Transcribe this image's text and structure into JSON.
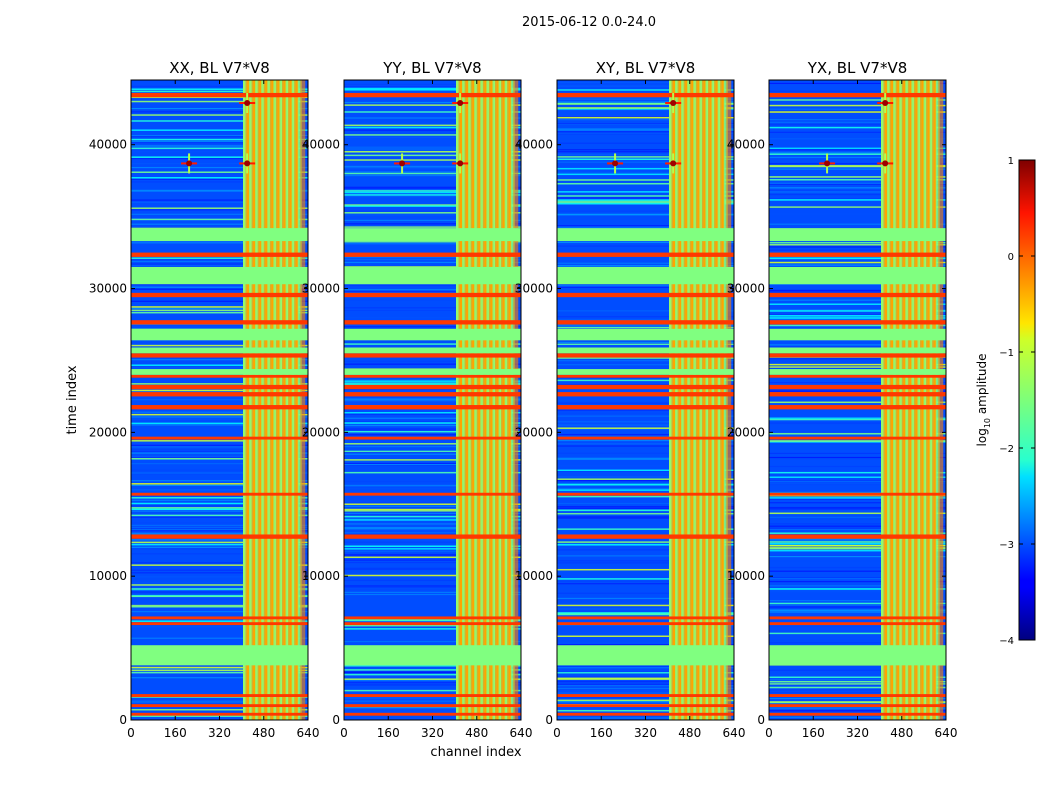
{
  "figure": {
    "suptitle": "2015-06-12 0.0-24.0",
    "xlabel": "channel index",
    "ylabel": "time index"
  },
  "chart_data": {
    "type": "heatmap",
    "colormap": "jet",
    "x_ticks": [
      0,
      160,
      320,
      480,
      640
    ],
    "y_ticks": [
      0,
      10000,
      20000,
      30000,
      40000
    ],
    "xlim": [
      0,
      640
    ],
    "ylim": [
      0,
      44500
    ],
    "panels": [
      {
        "title": "XX, BL V7*V8"
      },
      {
        "title": "YY, BL V7*V8"
      },
      {
        "title": "XY, BL V7*V8"
      },
      {
        "title": "YX, BL V7*V8"
      }
    ],
    "colorbar": {
      "label_prefix": "log",
      "label_sub": "10",
      "label_suffix": " amplitude",
      "range": [
        -4,
        1
      ],
      "ticks": [
        {
          "value": 1,
          "label": "1"
        },
        {
          "value": 0,
          "label": "0"
        },
        {
          "value": -1,
          "label": "−1"
        },
        {
          "value": -2,
          "label": "−2"
        },
        {
          "value": -3,
          "label": "−3"
        },
        {
          "value": -4,
          "label": "−4"
        }
      ]
    },
    "features": {
      "flagged_time_bands": [
        [
          3800,
          5200
        ],
        [
          24000,
          24400
        ],
        [
          25500,
          25900
        ],
        [
          26400,
          27200
        ],
        [
          30300,
          31500
        ],
        [
          33300,
          34200
        ]
      ],
      "flagged_channel_band": [
        405,
        605
      ],
      "high_time_bands": [
        [
          300,
          500
        ],
        [
          900,
          1100
        ],
        [
          1600,
          1800
        ],
        [
          6600,
          6800
        ],
        [
          7000,
          7200
        ],
        [
          12600,
          12900
        ],
        [
          15600,
          15800
        ],
        [
          19500,
          19700
        ],
        [
          21600,
          21900
        ],
        [
          22500,
          22800
        ],
        [
          23000,
          23300
        ],
        [
          23800,
          24000
        ],
        [
          25200,
          25500
        ],
        [
          27500,
          27800
        ],
        [
          29400,
          29700
        ],
        [
          32200,
          32500
        ],
        [
          43300,
          43600
        ]
      ],
      "rfi_spots": [
        [
          210,
          38700
        ],
        [
          420,
          38700
        ],
        [
          420,
          42900
        ]
      ]
    }
  }
}
